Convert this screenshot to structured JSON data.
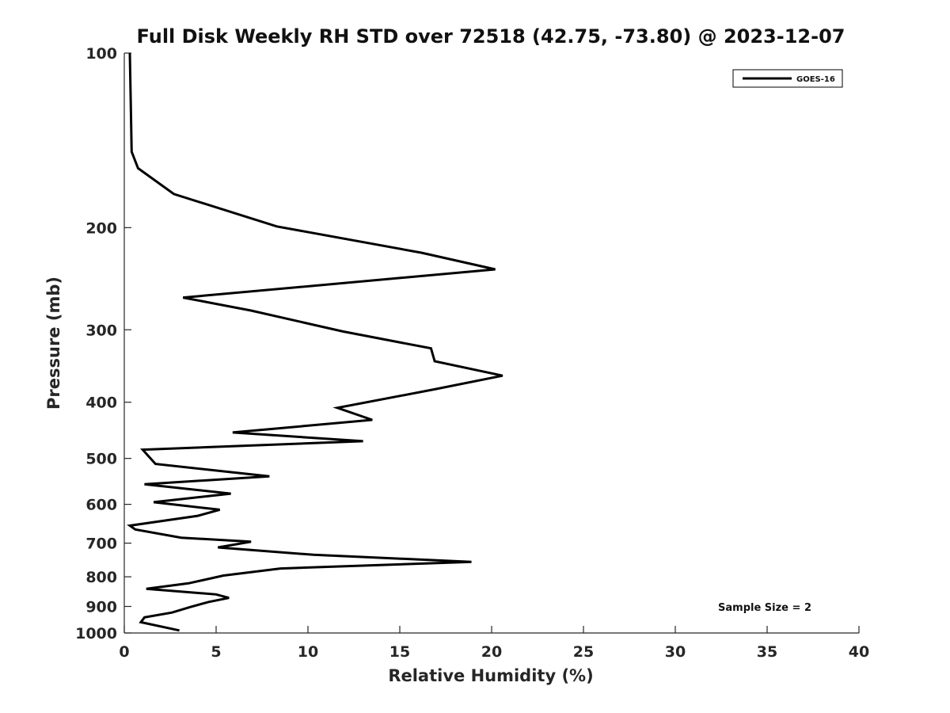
{
  "chart_data": {
    "type": "line",
    "title": "Full Disk Weekly RH STD over 72518 (42.75, -73.80) @ 2023-12-07",
    "xlabel": "Relative Humidity (%)",
    "ylabel": "Pressure (mb)",
    "xlim": [
      0,
      40
    ],
    "ylim": [
      100,
      1000
    ],
    "yscale": "log",
    "y_reversed": true,
    "xticks": [
      0,
      5,
      10,
      15,
      20,
      25,
      30,
      35,
      40
    ],
    "yticks": [
      100,
      200,
      300,
      400,
      500,
      600,
      700,
      800,
      900,
      1000
    ],
    "grid": false,
    "legend_position": "top-right",
    "annotation": "Sample Size = 2",
    "series": [
      {
        "name": "GOES-16",
        "color": "#000000",
        "points": [
          [
            0.3,
            100
          ],
          [
            0.4,
            148
          ],
          [
            0.75,
            158
          ],
          [
            2.7,
            175
          ],
          [
            8.3,
            199
          ],
          [
            16.2,
            221
          ],
          [
            20.2,
            236
          ],
          [
            3.2,
            264
          ],
          [
            6.9,
            278
          ],
          [
            11.9,
            302
          ],
          [
            16.7,
            323
          ],
          [
            16.9,
            340
          ],
          [
            20.6,
            360
          ],
          [
            16.9,
            380
          ],
          [
            11.6,
            409
          ],
          [
            13.5,
            429
          ],
          [
            5.9,
            451
          ],
          [
            13.0,
            467
          ],
          [
            1.0,
            483
          ],
          [
            1.7,
            511
          ],
          [
            7.9,
            537
          ],
          [
            1.1,
            554
          ],
          [
            5.8,
            575
          ],
          [
            1.6,
            595
          ],
          [
            5.2,
            613
          ],
          [
            4.0,
            628
          ],
          [
            0.3,
            653
          ],
          [
            0.6,
            663
          ],
          [
            3.1,
            685
          ],
          [
            6.9,
            696
          ],
          [
            5.1,
            712
          ],
          [
            10.3,
            733
          ],
          [
            18.9,
            754
          ],
          [
            8.5,
            774
          ],
          [
            5.4,
            796
          ],
          [
            3.5,
            821
          ],
          [
            1.2,
            839
          ],
          [
            5.0,
            858
          ],
          [
            5.7,
            870
          ],
          [
            4.6,
            884
          ],
          [
            3.6,
            902
          ],
          [
            2.6,
            922
          ],
          [
            1.1,
            940
          ],
          [
            0.9,
            958
          ],
          [
            3.0,
            990
          ]
        ]
      }
    ]
  }
}
